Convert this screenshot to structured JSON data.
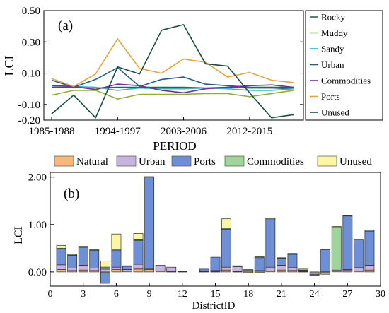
{
  "chart_data": [
    {
      "type": "line",
      "panel_label": "(a)",
      "xlabel": "PERIOD",
      "ylabel": "LCI",
      "ylim": [
        -0.2,
        0.5
      ],
      "yticks": [
        "0.50",
        "0.30",
        "0.10",
        "-0.10",
        "-0.20"
      ],
      "ytick_values": [
        0.5,
        0.3,
        0.1,
        -0.1,
        -0.2
      ],
      "xticks": [
        "1985-1988",
        "1994-1997",
        "2003-2006",
        "2012-2015"
      ],
      "xtick_index": [
        0,
        3,
        6,
        9
      ],
      "n_points": 12,
      "legend_position": "right",
      "series": [
        {
          "name": "Rocky",
          "color": "#1a6b57",
          "values": [
            0.01,
            0.01,
            0.005,
            0.01,
            0.01,
            0.01,
            0.01,
            0.005,
            0.01,
            0.005,
            0.005,
            0.0
          ]
        },
        {
          "name": "Muddy",
          "color": "#8fb03a",
          "values": [
            -0.04,
            -0.01,
            -0.01,
            -0.065,
            -0.035,
            -0.035,
            -0.035,
            -0.03,
            -0.03,
            -0.05,
            -0.03,
            -0.01
          ]
        },
        {
          "name": "Sandy",
          "color": "#3bb3c3",
          "values": [
            0.02,
            0.015,
            0.01,
            -0.01,
            0.005,
            0.0,
            0.0,
            0.005,
            0.0,
            -0.01,
            -0.01,
            0.0
          ]
        },
        {
          "name": "Urban",
          "color": "#1f5f8b",
          "values": [
            0.055,
            0.01,
            0.06,
            0.135,
            0.015,
            0.06,
            0.075,
            0.03,
            0.02,
            0.01,
            0.01,
            0.01
          ]
        },
        {
          "name": "Commodities",
          "color": "#7030a0",
          "values": [
            0.02,
            0.015,
            -0.005,
            0.03,
            0.02,
            -0.01,
            -0.025,
            0.0,
            0.01,
            0.02,
            0.025,
            0.01
          ]
        },
        {
          "name": "Ports",
          "color": "#e8a33c",
          "values": [
            0.065,
            0.015,
            0.095,
            0.32,
            0.13,
            0.1,
            0.19,
            0.17,
            0.075,
            0.105,
            0.055,
            0.04
          ]
        },
        {
          "name": "Unused",
          "color": "#1b4d3e",
          "values": [
            -0.16,
            -0.04,
            -0.185,
            0.14,
            0.095,
            0.375,
            0.41,
            0.16,
            0.145,
            -0.025,
            -0.185,
            -0.165
          ]
        }
      ]
    },
    {
      "type": "bar",
      "stacked": true,
      "panel_label": "(b)",
      "xlabel": "DistrictID",
      "ylabel": "LCI",
      "ylim": [
        -0.3,
        2.1
      ],
      "xlim": [
        0,
        30
      ],
      "yticks": [
        "2.00",
        "1.00",
        "0.00"
      ],
      "ytick_values": [
        2.0,
        1.0,
        0.0
      ],
      "xticks": [
        "0",
        "3",
        "6",
        "9",
        "12",
        "15",
        "18",
        "21",
        "24",
        "27",
        "30"
      ],
      "xtick_values": [
        0,
        3,
        6,
        9,
        12,
        15,
        18,
        21,
        24,
        27,
        30
      ],
      "legend_position": "top",
      "x": [
        1,
        2,
        3,
        4,
        5,
        6,
        7,
        8,
        9,
        10,
        11,
        12,
        14,
        15,
        16,
        17,
        18,
        19,
        20,
        21,
        22,
        23,
        24,
        25,
        26,
        27,
        28,
        29
      ],
      "series": [
        {
          "name": "Natural",
          "color": "#f7b97b",
          "values": [
            0.05,
            0.03,
            0.04,
            0.03,
            -0.02,
            0.05,
            0.02,
            0.06,
            0.05,
            0.02,
            0.01,
            0.01,
            0.01,
            0.01,
            0.04,
            0.01,
            -0.02,
            -0.02,
            0.02,
            0.04,
            0.03,
            0.01,
            -0.02,
            -0.02,
            0.02,
            0.03,
            0.02,
            0.04
          ]
        },
        {
          "name": "Urban",
          "color": "#c5b3e0",
          "values": [
            0.1,
            0.05,
            0.1,
            0.05,
            0.06,
            0.05,
            0.03,
            0.1,
            0.02,
            0.12,
            0.09,
            0.01,
            0.01,
            0.02,
            0.06,
            0.1,
            0.03,
            0.03,
            0.08,
            0.1,
            0.06,
            0.02,
            -0.03,
            -0.03,
            0.02,
            0.02,
            0.07,
            0.1
          ]
        },
        {
          "name": "Ports",
          "color": "#6e8fd6",
          "values": [
            0.33,
            0.27,
            0.38,
            0.37,
            -0.22,
            0.36,
            0.07,
            0.5,
            1.93,
            0.0,
            0.0,
            0.0,
            0.04,
            0.28,
            0.8,
            0.0,
            0.0,
            0.27,
            1.0,
            0.15,
            0.28,
            0.0,
            -0.02,
            0.47,
            0.0,
            1.13,
            0.59,
            0.72
          ]
        },
        {
          "name": "Commodities",
          "color": "#9fd49a",
          "values": [
            0.02,
            0.02,
            0.02,
            0.02,
            0.04,
            0.02,
            0.01,
            0.03,
            0.01,
            0.0,
            0.0,
            0.0,
            0.0,
            0.0,
            0.02,
            0.02,
            0.02,
            0.02,
            0.02,
            0.01,
            0.02,
            0.01,
            0.0,
            0.0,
            0.9,
            0.01,
            0.01,
            0.02
          ]
        },
        {
          "name": "Unused",
          "color": "#fbf6a4",
          "values": [
            0.06,
            0.0,
            0.0,
            0.0,
            0.13,
            0.32,
            0.0,
            0.12,
            0.0,
            0.0,
            0.0,
            0.0,
            0.0,
            0.0,
            0.2,
            0.0,
            0.0,
            0.0,
            0.02,
            0.0,
            0.0,
            0.02,
            0.0,
            0.0,
            0.02,
            0.0,
            0.0,
            0.0
          ]
        }
      ]
    }
  ]
}
